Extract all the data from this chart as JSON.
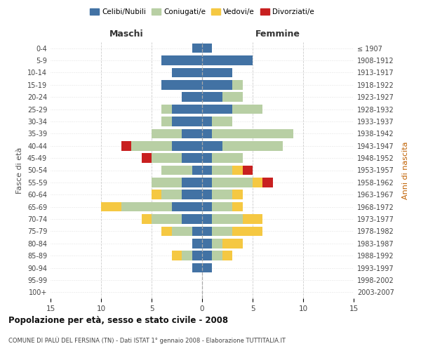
{
  "age_groups": [
    "0-4",
    "5-9",
    "10-14",
    "15-19",
    "20-24",
    "25-29",
    "30-34",
    "35-39",
    "40-44",
    "45-49",
    "50-54",
    "55-59",
    "60-64",
    "65-69",
    "70-74",
    "75-79",
    "80-84",
    "85-89",
    "90-94",
    "95-99",
    "100+"
  ],
  "birth_years": [
    "2003-2007",
    "1998-2002",
    "1993-1997",
    "1988-1992",
    "1983-1987",
    "1978-1982",
    "1973-1977",
    "1968-1972",
    "1963-1967",
    "1958-1962",
    "1953-1957",
    "1948-1952",
    "1943-1947",
    "1938-1942",
    "1933-1937",
    "1928-1932",
    "1923-1927",
    "1918-1922",
    "1913-1917",
    "1908-1912",
    "≤ 1907"
  ],
  "maschi": {
    "celibi": [
      1,
      4,
      3,
      4,
      2,
      3,
      3,
      2,
      3,
      2,
      1,
      2,
      2,
      3,
      2,
      1,
      1,
      1,
      1,
      0,
      0
    ],
    "coniugati": [
      0,
      0,
      0,
      0,
      0,
      1,
      1,
      3,
      4,
      3,
      3,
      3,
      2,
      5,
      3,
      2,
      0,
      1,
      0,
      0,
      0
    ],
    "vedovi": [
      0,
      0,
      0,
      0,
      0,
      0,
      0,
      0,
      0,
      0,
      0,
      0,
      1,
      2,
      1,
      1,
      0,
      1,
      0,
      0,
      0
    ],
    "divorziati": [
      0,
      0,
      0,
      0,
      0,
      0,
      0,
      0,
      1,
      1,
      0,
      0,
      0,
      0,
      0,
      0,
      0,
      0,
      0,
      0,
      0
    ]
  },
  "femmine": {
    "nubili": [
      1,
      5,
      3,
      3,
      2,
      3,
      1,
      1,
      2,
      1,
      1,
      1,
      1,
      1,
      1,
      1,
      1,
      1,
      1,
      0,
      0
    ],
    "coniugate": [
      0,
      0,
      0,
      1,
      2,
      3,
      2,
      8,
      6,
      3,
      2,
      4,
      2,
      2,
      3,
      2,
      1,
      1,
      0,
      0,
      0
    ],
    "vedove": [
      0,
      0,
      0,
      0,
      0,
      0,
      0,
      0,
      0,
      0,
      1,
      1,
      1,
      1,
      2,
      3,
      2,
      1,
      0,
      0,
      0
    ],
    "divorziate": [
      0,
      0,
      0,
      0,
      0,
      0,
      0,
      0,
      0,
      0,
      1,
      1,
      0,
      0,
      0,
      0,
      0,
      0,
      0,
      0,
      0
    ]
  },
  "colors": {
    "celibi_nubili": "#4272a4",
    "coniugati": "#b8cfa4",
    "vedovi": "#f5c842",
    "divorziati": "#c82020"
  },
  "title": "Popolazione per età, sesso e stato civile - 2008",
  "subtitle": "COMUNE DI PALÙ DEL FERSINA (TN) - Dati ISTAT 1° gennaio 2008 - Elaborazione TUTTITALIA.IT",
  "xlabel_left": "Maschi",
  "xlabel_right": "Femmine",
  "ylabel_left": "Fasce di età",
  "ylabel_right": "Anni di nascita",
  "xlim": 15,
  "legend_labels": [
    "Celibi/Nubili",
    "Coniugati/e",
    "Vedovi/e",
    "Divorziati/e"
  ],
  "background_color": "#ffffff",
  "grid_color": "#cccccc"
}
